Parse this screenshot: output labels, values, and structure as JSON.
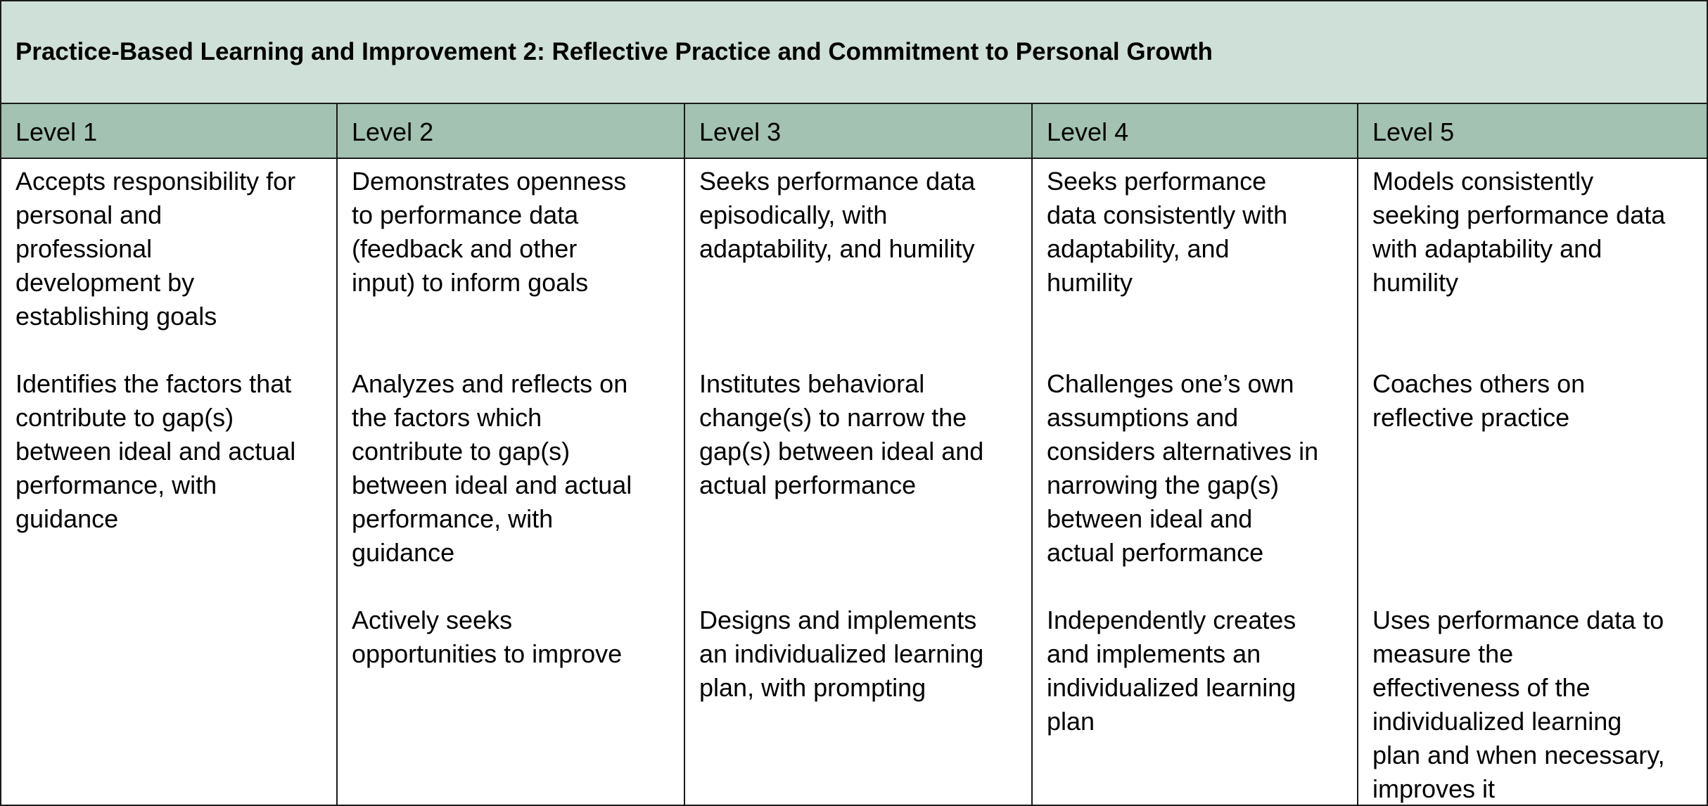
{
  "title": "Practice-Based Learning and Improvement 2: Reflective Practice and Commitment to Personal Growth",
  "colors": {
    "title_bg": "#cfe0d8",
    "header_bg": "#a3c2b1",
    "border": "#1a1a1a"
  },
  "levels": [
    {
      "label": "Level 1",
      "items": [
        [
          "Accepts responsibility for",
          "personal and",
          "professional",
          "development by",
          "establishing goals"
        ],
        [
          "Identifies the factors that",
          "contribute to gap(s)",
          "between ideal and actual",
          "performance, with",
          "guidance"
        ]
      ]
    },
    {
      "label": "Level 2",
      "items": [
        [
          "Demonstrates openness",
          "to performance data",
          "(feedback and other",
          "input) to inform goals"
        ],
        [
          "Analyzes and reflects on",
          "the factors which",
          "contribute to gap(s)",
          "between ideal and actual",
          "performance, with",
          "guidance"
        ],
        [
          "Actively seeks",
          "opportunities to improve"
        ]
      ]
    },
    {
      "label": "Level 3",
      "items": [
        [
          "Seeks performance data",
          "episodically, with",
          "adaptability, and humility"
        ],
        [
          "Institutes behavioral",
          "change(s) to narrow the",
          "gap(s) between ideal and",
          "actual performance"
        ],
        [
          "Designs and implements",
          "an individualized learning",
          "plan, with prompting"
        ]
      ]
    },
    {
      "label": "Level 4",
      "items": [
        [
          "Seeks performance",
          "data consistently with",
          "adaptability, and",
          "humility"
        ],
        [
          "Challenges one’s own",
          "assumptions and",
          "considers alternatives in",
          "narrowing the gap(s)",
          "between ideal and",
          "actual performance"
        ],
        [
          "Independently creates",
          "and implements an",
          "individualized learning",
          "plan"
        ]
      ]
    },
    {
      "label": "Level 5",
      "items": [
        [
          "Models consistently",
          "seeking performance data",
          "with adaptability and",
          "humility"
        ],
        [
          "Coaches others on",
          "reflective practice"
        ],
        [
          "Uses performance data to",
          "measure the",
          "effectiveness of the",
          "individualized learning",
          "plan and when necessary,",
          "improves it"
        ]
      ]
    }
  ]
}
